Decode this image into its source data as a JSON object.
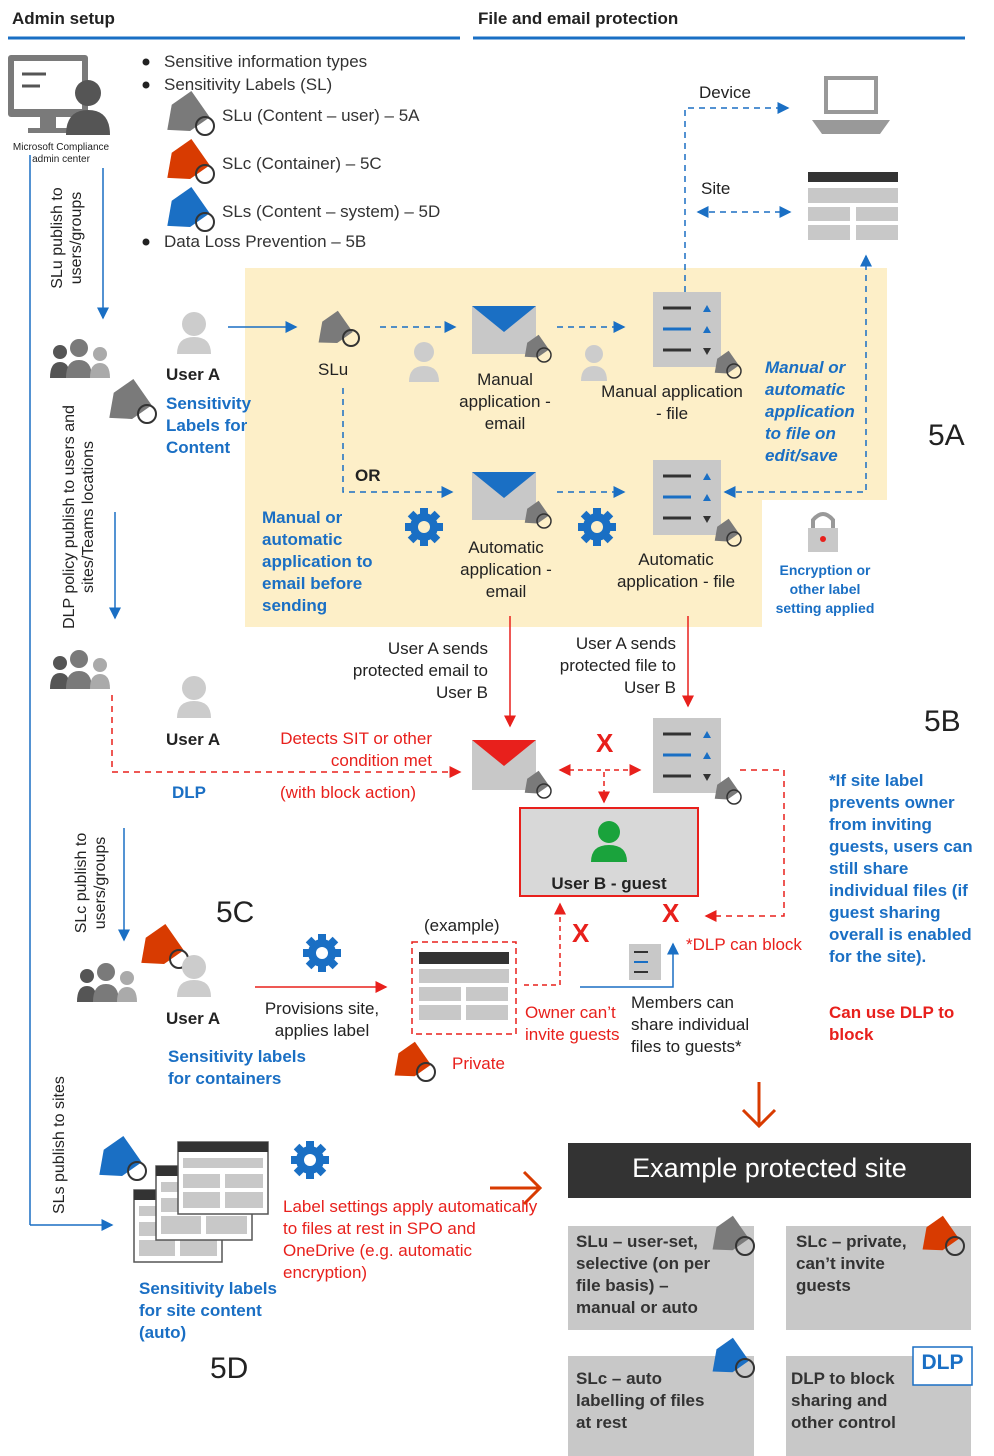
{
  "header": {
    "left": "Admin setup",
    "right": "File and email protection"
  },
  "admin": {
    "caption": "Microsoft Compliance admin center"
  },
  "legend": {
    "sit": "Sensitive information types",
    "sl": "Sensitivity Labels (SL)",
    "slu": "SLu (Content – user) – 5A",
    "slc": "SLc (Container) – 5C",
    "sls": "SLs (Content – system) – 5D",
    "dlp": "Data Loss Prevention – 5B"
  },
  "side": {
    "slu_publish": "SLu publish to users/groups",
    "dlp_publish": "DLP policy publish to users and sites/Teams locations",
    "slc_publish": "SLc publish to users/groups",
    "sls_publish": "SLs publish to sites"
  },
  "s5a": {
    "user": "User A",
    "caption": "Sensitivity Labels for Content",
    "slu": "SLu",
    "or": "OR",
    "manual_email": "Manual application - email",
    "manual_file": "Manual application - file",
    "auto_email": "Automatic application - email",
    "auto_file": "Automatic application - file",
    "note_file": "Manual or automatic application to file on edit/save",
    "note_email": "Manual or automatic application to email before sending",
    "device": "Device",
    "site": "Site",
    "encryption": "Encryption or other label setting applied",
    "label": "5A"
  },
  "s5b": {
    "sends_email": "User A sends protected email to User B",
    "sends_file": "User A sends protected file to User B",
    "user": "User A",
    "dlp": "DLP",
    "detects": "Detects SIT or other condition met",
    "block": "(with block action)",
    "guest": "User B - guest",
    "label": "5B",
    "note": "*If site label prevents owner from inviting guests, users can still share individual files (if guest sharing overall is enabled for the site).",
    "note_red": "Can use DLP to block"
  },
  "s5c": {
    "label": "5C",
    "user": "User A",
    "provisions": "Provisions site, applies label",
    "caption": "Sensitivity labels for containers",
    "example": "(example)",
    "private": "Private",
    "owner": "Owner can’t invite guests",
    "members": "Members can share individual files to guests*",
    "dlp_block": "*DLP can block",
    "x": "X"
  },
  "s5d": {
    "label": "5D",
    "caption": "Sensitivity labels for site content (auto)",
    "settings": "Label settings apply automatically to files at rest in SPO and OneDrive (e.g. automatic encryption)"
  },
  "example": {
    "title": "Example protected site",
    "box1": "SLu – user-set, selective (on per file basis) – manual or auto",
    "box2": "SLc – private, can’t invite guests",
    "box3": "SLc – auto labelling of files at rest",
    "box4": "DLP to block sharing and other control",
    "dlp_badge": "DLP"
  },
  "colors": {
    "blue": "#1a6fc4",
    "red": "#e8201c",
    "orange": "#d83b01",
    "gray": "#8a8a8a",
    "panel": "#fdefc8"
  }
}
